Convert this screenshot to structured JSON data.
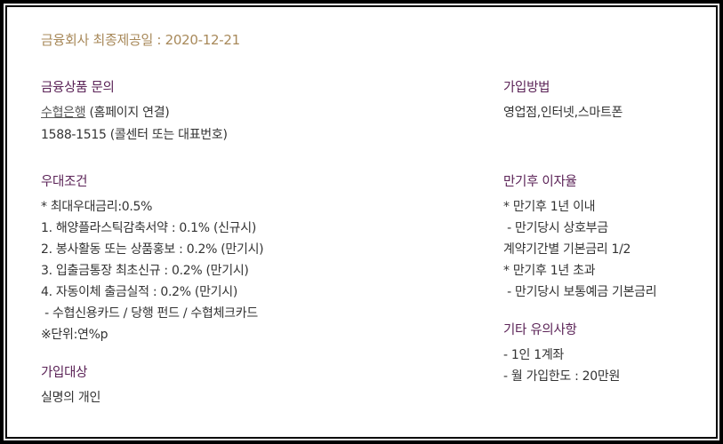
{
  "disclosure_date": "금융회사 최종제공일 : 2020-12-21",
  "inquiry": {
    "heading": "금융상품 문의",
    "bank_link": "수협은행",
    "bank_link_note": " (홈페이지 연결)",
    "phone": "1588-1515 (콜센터 또는 대표번호)"
  },
  "preferential": {
    "heading": "우대조건",
    "lines": [
      "* 최대우대금리:0.5%",
      "1. 해양플라스틱감축서약 : 0.1% (신규시)",
      "2. 봉사활동 또는 상품홍보 : 0.2% (만기시)",
      "3. 입출금통장 최초신규 : 0.2% (만기시)",
      "4. 자동이체 출금실적 : 0.2% (만기시)",
      " - 수협신용카드 / 당행 펀드 / 수협체크카드",
      "※단위:연%p"
    ]
  },
  "eligibility": {
    "heading": "가입대상",
    "text": "실명의 개인"
  },
  "join_method": {
    "heading": "가입방법",
    "text": "영업점,인터넷,스마트폰"
  },
  "post_maturity": {
    "heading": "만기후 이자율",
    "lines": [
      "* 만기후 1년 이내",
      " - 만기당시 상호부금",
      "계약기간별 기본금리 1/2",
      "* 만기후 1년 초과",
      " - 만기당시 보통예금 기본금리"
    ]
  },
  "notes": {
    "heading": "기타 유의사항",
    "lines": [
      "- 1인 1계좌",
      "- 월 가입한도 : 20만원"
    ]
  }
}
